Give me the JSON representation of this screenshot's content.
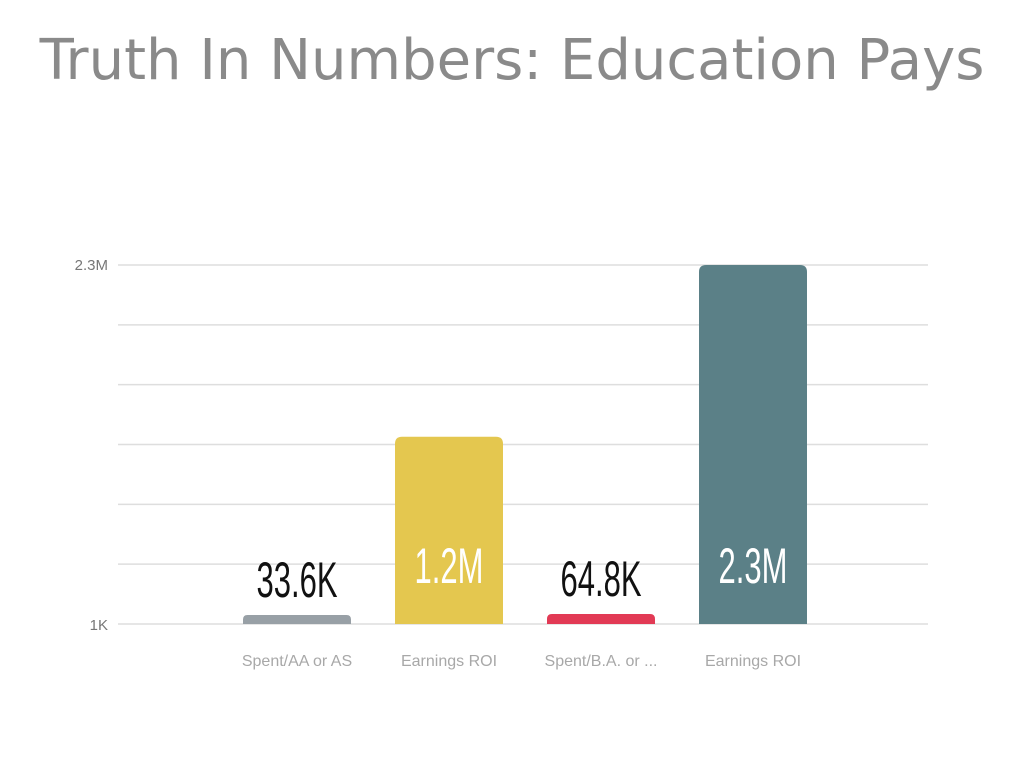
{
  "title": "Truth In Numbers: Education Pays",
  "chart_data": {
    "type": "bar",
    "title": "Truth In Numbers: Education Pays",
    "categories": [
      "Spent/AA or AS",
      "Earnings ROI",
      "Spent/B.A. or ...",
      "Earnings ROI"
    ],
    "values": [
      33600,
      1200000,
      64800,
      2300000
    ],
    "data_labels": [
      "33.6K",
      "1.2M",
      "64.8K",
      "2.3M"
    ],
    "colors": [
      "#98a0a6",
      "#e4c74f",
      "#e23a55",
      "#5b8087"
    ],
    "label_colors": [
      "#111111",
      "#ffffff",
      "#111111",
      "#ffffff"
    ],
    "y_tick_labels": [
      "1K",
      "2.3M"
    ],
    "ylim": [
      1000,
      2300000
    ],
    "grid": true,
    "xlabel": "",
    "ylabel": ""
  }
}
